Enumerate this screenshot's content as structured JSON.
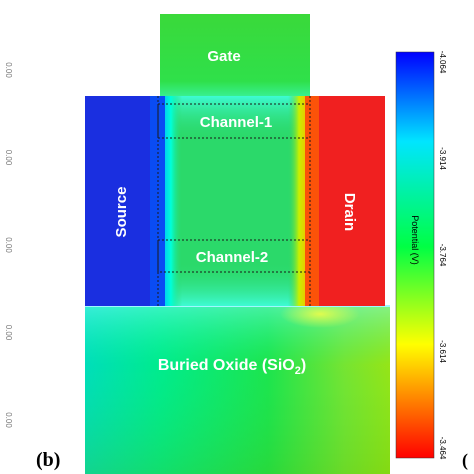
{
  "panel_label": "(b)",
  "regions": {
    "gate": "Gate",
    "channel_1": "Channel-1",
    "channel_2": "Channel-2",
    "source": "Source",
    "drain": "Drain",
    "oxide_main": "Buried Oxide (SiO",
    "oxide_sub": "2",
    "oxide_close": ")"
  },
  "colorbar": {
    "title": "Potential (V)",
    "ticks": [
      "-4.064",
      "-3.914",
      "-3.764",
      "-3.614",
      "-3.464"
    ],
    "colors": [
      "#0000ff",
      "#00e5ff",
      "#00ff44",
      "#ffff00",
      "#ff0000"
    ]
  },
  "left_axis_ticks": [
    "0.00",
    "0.00",
    "0.00",
    "0.00",
    "0.00"
  ],
  "right_edge_fragment": "(",
  "colors": {
    "source": "#1a2fe0",
    "drain": "#f02020",
    "gate": "#33dd33",
    "channel_body": "#2bd96a",
    "oxide_top": "#00e87a",
    "oxide_bottom": "#35d035"
  }
}
